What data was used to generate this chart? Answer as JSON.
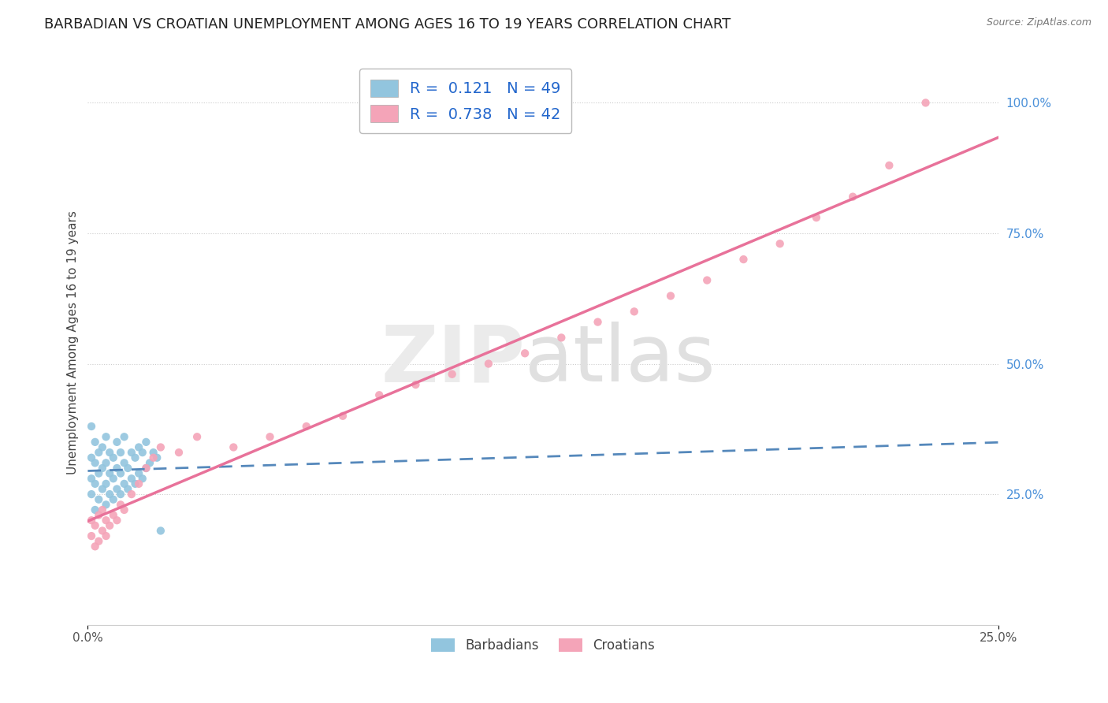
{
  "title": "BARBADIAN VS CROATIAN UNEMPLOYMENT AMONG AGES 16 TO 19 YEARS CORRELATION CHART",
  "source": "Source: ZipAtlas.com",
  "ylabel": "Unemployment Among Ages 16 to 19 years",
  "xlim": [
    0.0,
    0.25
  ],
  "ylim": [
    0.0,
    1.08
  ],
  "xtick_positions": [
    0.0,
    0.25
  ],
  "xticklabels": [
    "0.0%",
    "25.0%"
  ],
  "ytick_positions": [
    0.25,
    0.5,
    0.75,
    1.0
  ],
  "yticklabels": [
    "25.0%",
    "50.0%",
    "75.0%",
    "100.0%"
  ],
  "barbadian_color": "#92c5de",
  "croatian_color": "#f4a4b8",
  "barbadian_trend_color": "#5588bb",
  "croatian_trend_color": "#e8729a",
  "R_barbadian": 0.121,
  "N_barbadian": 49,
  "R_croatian": 0.738,
  "N_croatian": 42,
  "background_color": "#ffffff",
  "title_fontsize": 13,
  "axis_label_fontsize": 11,
  "tick_fontsize": 11,
  "legend_fontsize": 14,
  "barbadian_x": [
    0.001,
    0.001,
    0.001,
    0.001,
    0.002,
    0.002,
    0.002,
    0.002,
    0.003,
    0.003,
    0.003,
    0.004,
    0.004,
    0.004,
    0.005,
    0.005,
    0.005,
    0.005,
    0.006,
    0.006,
    0.006,
    0.007,
    0.007,
    0.007,
    0.008,
    0.008,
    0.008,
    0.009,
    0.009,
    0.009,
    0.01,
    0.01,
    0.01,
    0.011,
    0.011,
    0.012,
    0.012,
    0.013,
    0.013,
    0.014,
    0.014,
    0.015,
    0.015,
    0.016,
    0.016,
    0.017,
    0.018,
    0.019,
    0.02
  ],
  "barbadian_y": [
    0.25,
    0.28,
    0.32,
    0.38,
    0.22,
    0.27,
    0.31,
    0.35,
    0.24,
    0.29,
    0.33,
    0.26,
    0.3,
    0.34,
    0.23,
    0.27,
    0.31,
    0.36,
    0.25,
    0.29,
    0.33,
    0.24,
    0.28,
    0.32,
    0.26,
    0.3,
    0.35,
    0.25,
    0.29,
    0.33,
    0.27,
    0.31,
    0.36,
    0.26,
    0.3,
    0.28,
    0.33,
    0.27,
    0.32,
    0.29,
    0.34,
    0.28,
    0.33,
    0.3,
    0.35,
    0.31,
    0.33,
    0.32,
    0.18
  ],
  "croatian_x": [
    0.001,
    0.001,
    0.002,
    0.002,
    0.003,
    0.003,
    0.004,
    0.004,
    0.005,
    0.005,
    0.006,
    0.007,
    0.008,
    0.009,
    0.01,
    0.012,
    0.014,
    0.016,
    0.018,
    0.02,
    0.025,
    0.03,
    0.04,
    0.05,
    0.06,
    0.07,
    0.08,
    0.09,
    0.1,
    0.11,
    0.12,
    0.13,
    0.14,
    0.15,
    0.16,
    0.17,
    0.18,
    0.19,
    0.2,
    0.21,
    0.22,
    0.23
  ],
  "croatian_y": [
    0.17,
    0.2,
    0.15,
    0.19,
    0.16,
    0.21,
    0.18,
    0.22,
    0.17,
    0.2,
    0.19,
    0.21,
    0.2,
    0.23,
    0.22,
    0.25,
    0.27,
    0.3,
    0.32,
    0.34,
    0.33,
    0.36,
    0.34,
    0.36,
    0.38,
    0.4,
    0.44,
    0.46,
    0.48,
    0.5,
    0.52,
    0.55,
    0.58,
    0.6,
    0.63,
    0.66,
    0.7,
    0.73,
    0.78,
    0.82,
    0.88,
    1.0
  ]
}
